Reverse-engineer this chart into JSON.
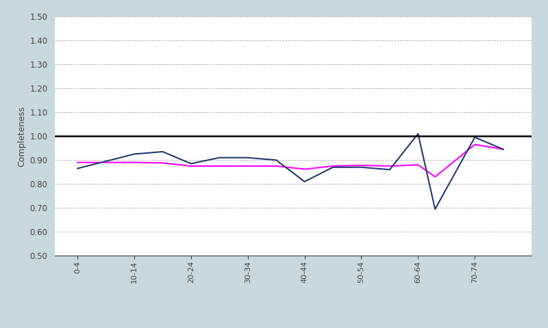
{
  "series1_color": "#1F3A6E",
  "series2_color": "#FF00FF",
  "ylabel": "Completeness",
  "ylim": [
    0.5,
    1.5
  ],
  "yticks": [
    0.5,
    0.6,
    0.7,
    0.8,
    0.9,
    1.0,
    1.1,
    1.2,
    1.3,
    1.4,
    1.5
  ],
  "background_color": "#C8D8DC",
  "plot_bg_color": "#FFFFFF",
  "tick_labels": [
    "0-4",
    "10-14",
    "20-24",
    "30-34",
    "40-44",
    "50-54",
    "60-64",
    "70-74"
  ],
  "tick_x": [
    0,
    1,
    2,
    3,
    4,
    5,
    6,
    7
  ],
  "s1_x": [
    0,
    1,
    1.5,
    2,
    2.5,
    3,
    3.5,
    4,
    4.5,
    5,
    5.5,
    6,
    6.3,
    7,
    7.5
  ],
  "s1_y": [
    0.865,
    0.925,
    0.935,
    0.885,
    0.91,
    0.91,
    0.9,
    0.81,
    0.87,
    0.87,
    0.86,
    1.01,
    0.695,
    0.995,
    0.945
  ],
  "s2_x": [
    0,
    1,
    1.5,
    2,
    2.5,
    3,
    3.5,
    4,
    4.5,
    5,
    5.5,
    6,
    6.3,
    7,
    7.5
  ],
  "s2_y": [
    0.89,
    0.89,
    0.888,
    0.875,
    0.875,
    0.875,
    0.875,
    0.862,
    0.875,
    0.878,
    0.875,
    0.88,
    0.83,
    0.965,
    0.945
  ],
  "xlim": [
    -0.4,
    8.0
  ]
}
